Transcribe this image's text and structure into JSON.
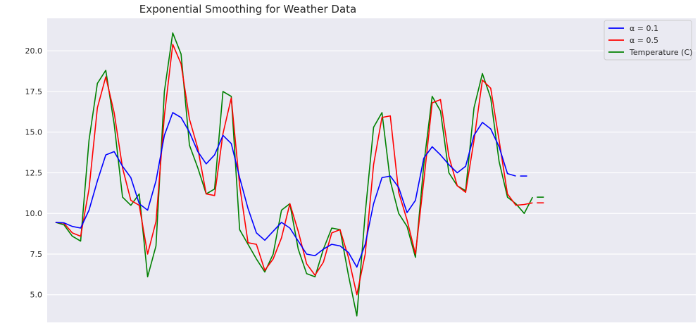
{
  "chart_data": {
    "type": "line",
    "title": "Exponential Smoothing for Weather Data",
    "xlabel": "",
    "ylabel": "",
    "ylim": [
      3.3,
      22.0
    ],
    "xlim": [
      -4,
      306
    ],
    "yticks": [
      "5.0",
      "7.5",
      "10.0",
      "12.5",
      "15.0",
      "17.5",
      "20.0"
    ],
    "grid": true,
    "legend_position": "top-right",
    "x": [
      0,
      4,
      8,
      12,
      16,
      20,
      24,
      28,
      32,
      36,
      40,
      44,
      48,
      52,
      56,
      60,
      64,
      68,
      72,
      76,
      80,
      84,
      88,
      92,
      96,
      100,
      104,
      108,
      112,
      116,
      120,
      124,
      128,
      132,
      136,
      140,
      144,
      148,
      152,
      156,
      160,
      164,
      168,
      172,
      176,
      180,
      184,
      188,
      192,
      196,
      200,
      204,
      208,
      212,
      216,
      220,
      224,
      228,
      232,
      236,
      240,
      244,
      248,
      252,
      256,
      260,
      264,
      268,
      272,
      276,
      280,
      284,
      288,
      292,
      296
    ],
    "series": [
      {
        "name": "α = 0.1",
        "color": "#0000ff",
        "values": [
          9.45,
          9.42,
          9.2,
          9.1,
          10.2,
          12.0,
          13.6,
          13.8,
          12.9,
          12.2,
          10.6,
          10.2,
          12.0,
          14.8,
          16.2,
          15.9,
          15.0,
          13.8,
          13.05,
          13.6,
          14.8,
          14.3,
          12.2,
          10.3,
          8.8,
          8.35,
          8.9,
          9.45,
          9.1,
          8.3,
          7.5,
          7.4,
          7.8,
          8.1,
          8.0,
          7.6,
          6.7,
          8.1,
          10.6,
          12.2,
          12.3,
          11.6,
          10.05,
          10.8,
          13.4,
          14.1,
          13.6,
          13.0,
          12.5,
          12.9,
          14.8,
          15.6,
          15.2,
          14.1,
          12.45,
          12.3,
          null,
          null,
          null,
          null,
          null,
          null,
          null,
          null,
          null,
          null,
          null,
          null,
          null,
          null,
          null,
          null,
          null,
          null,
          null
        ]
      },
      {
        "name": "α = 0.5",
        "color": "#ff0000",
        "values": [
          9.45,
          9.4,
          8.8,
          8.6,
          11.5,
          16.5,
          18.4,
          16.2,
          12.8,
          10.8,
          10.5,
          7.5,
          9.5,
          16.0,
          20.4,
          19.2,
          15.8,
          14.0,
          11.2,
          11.1,
          14.9,
          17.1,
          11.7,
          8.2,
          8.1,
          6.5,
          7.2,
          8.5,
          10.6,
          8.9,
          6.9,
          6.2,
          7.0,
          8.8,
          9.0,
          7.3,
          5.0,
          7.5,
          13.0,
          15.9,
          16.0,
          11.3,
          9.6,
          7.5,
          12.0,
          16.8,
          17.0,
          13.5,
          11.7,
          11.3,
          14.5,
          18.2,
          17.7,
          14.5,
          11.2,
          10.5,
          10.55,
          10.65,
          null,
          null,
          null,
          null,
          null,
          null,
          null,
          null,
          null,
          null,
          null,
          null,
          null,
          null,
          null,
          null,
          null
        ]
      },
      {
        "name": "Temperature (C)",
        "color": "#008000",
        "values": [
          9.45,
          9.3,
          8.6,
          8.3,
          14.5,
          18.0,
          18.8,
          15.5,
          11.0,
          10.5,
          11.2,
          6.1,
          8.0,
          17.5,
          21.1,
          19.8,
          14.2,
          12.8,
          11.2,
          11.5,
          17.5,
          17.2,
          9.0,
          8.1,
          7.2,
          6.4,
          7.5,
          10.2,
          10.6,
          7.8,
          6.3,
          6.1,
          7.8,
          9.1,
          9.0,
          6.2,
          3.7,
          10.0,
          15.3,
          16.2,
          12.0,
          10.0,
          9.2,
          7.3,
          13.0,
          17.2,
          16.3,
          12.5,
          11.7,
          11.4,
          16.5,
          18.6,
          17.1,
          13.2,
          11.0,
          10.6,
          10.0,
          11.0,
          null,
          null,
          null,
          null,
          null,
          null,
          null,
          null,
          null,
          null,
          null,
          null,
          null,
          null,
          null,
          null,
          null
        ]
      }
    ]
  }
}
